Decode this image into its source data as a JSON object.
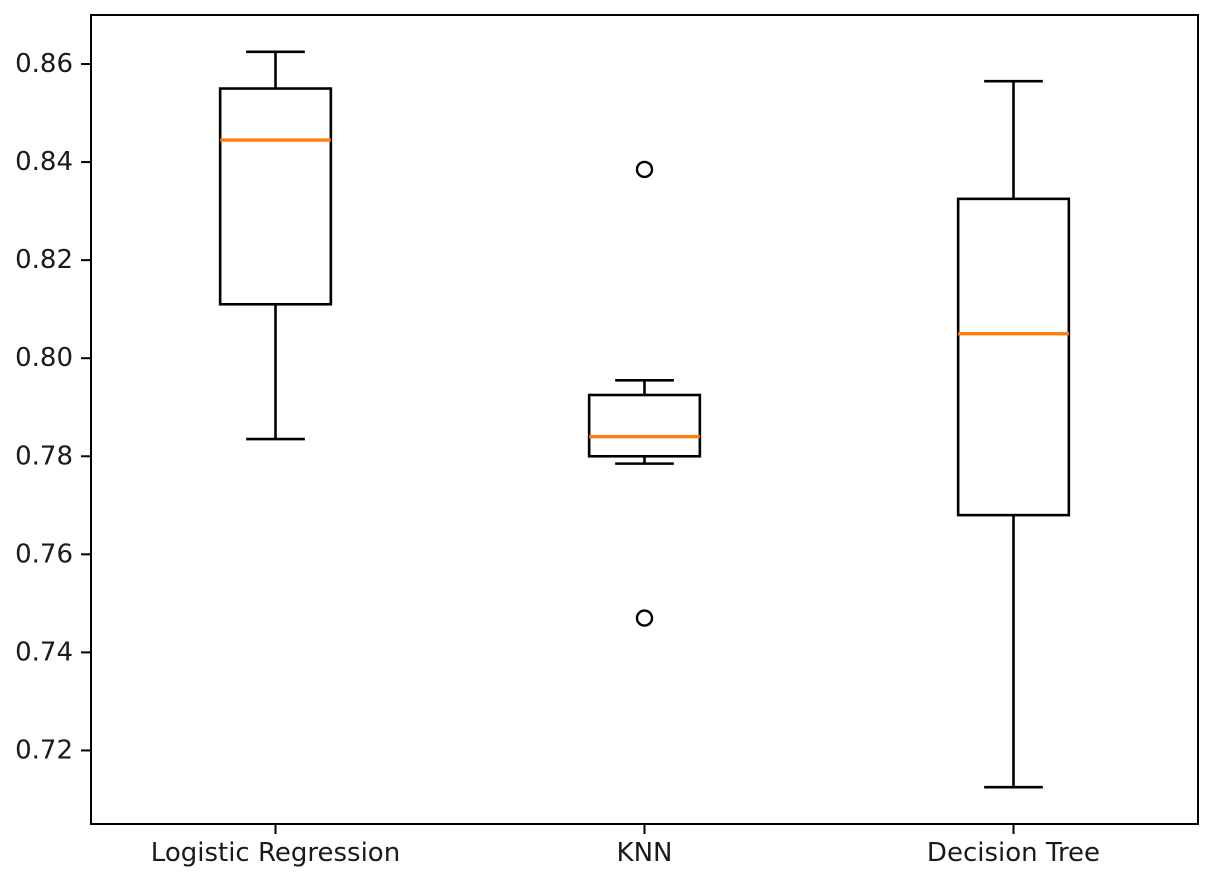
{
  "chart_data": {
    "type": "box",
    "title": "",
    "xlabel": "",
    "ylabel": "",
    "categories": [
      "Logistic Regression",
      "KNN",
      "Decision Tree"
    ],
    "series": [
      {
        "name": "Logistic Regression",
        "whislo": 0.7835,
        "q1": 0.811,
        "med": 0.8445,
        "q3": 0.855,
        "whishi": 0.8625,
        "fliers": []
      },
      {
        "name": "KNN",
        "whislo": 0.7785,
        "q1": 0.78,
        "med": 0.784,
        "q3": 0.7925,
        "whishi": 0.7955,
        "fliers": [
          0.8385,
          0.747
        ]
      },
      {
        "name": "Decision Tree",
        "whislo": 0.7125,
        "q1": 0.768,
        "med": 0.805,
        "q3": 0.8325,
        "whishi": 0.8565,
        "fliers": []
      }
    ],
    "positions": [
      1,
      2,
      3
    ],
    "box_width": 0.3,
    "yticks": [
      {
        "value": 0.86,
        "label": "0.86"
      },
      {
        "value": 0.84,
        "label": "0.84"
      },
      {
        "value": 0.82,
        "label": "0.82"
      },
      {
        "value": 0.8,
        "label": "0.80"
      },
      {
        "value": 0.78,
        "label": "0.78"
      },
      {
        "value": 0.76,
        "label": "0.76"
      },
      {
        "value": 0.74,
        "label": "0.74"
      },
      {
        "value": 0.72,
        "label": "0.72"
      }
    ],
    "ylim": [
      0.705,
      0.87
    ],
    "xlim": [
      0.5,
      3.5
    ],
    "grid": false,
    "legend": null,
    "colors": {
      "box_edge": "#000000",
      "median": "#ff7f0e",
      "whisker": "#000000",
      "cap": "#000000",
      "flier_edge": "#000000",
      "axis": "#000000",
      "tick_label": "#1a1a1a",
      "background": "#ffffff"
    }
  }
}
